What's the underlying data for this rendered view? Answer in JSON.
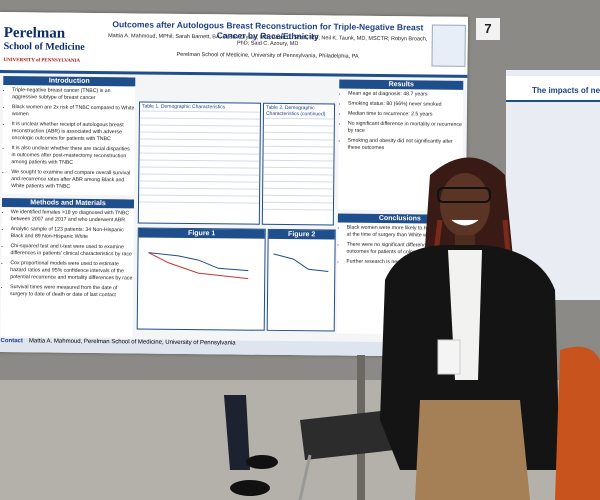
{
  "poster": {
    "logo": "Perelman",
    "logo_sub": "School of Medicine",
    "logo_univ": "UNIVERSITY of PENNSYLVANIA",
    "title": "Outcomes after Autologous Breast Reconstruction for Triple-Negative Breast Cancer by Race/Ethnicity",
    "authors": "Mattia A. Mahmoud, MPhil; Sarah Barnett, BA; Dustin Crystal, MD; Pavel D. Shah, MD; Neil K. Taunk, MD, MSCTR; Robyn Broach, PhD; Said C. Azoury, MD",
    "affiliation": "Perelman School of Medicine, University of Pennsylvania, Philadelphia, PA",
    "sections": [
      {
        "heading": "Introduction",
        "bullets": [
          "Triple-negative breast cancer (TNBC) is an aggressive subtype of breast cancer",
          "Black women are 2x risk of TNBC compared to White women",
          "It is unclear whether receipt of autologous breast reconstruction (ABR) is associated with adverse oncologic outcomes for patients with TNBC",
          "It is also unclear whether there are racial disparities in outcomes after post-mastectomy reconstruction among patients with TNBC",
          "We sought to examine and compare overall survival and recurrence rates after ABR among Black and White patients with TNBC"
        ]
      },
      {
        "heading": "Methods and Materials",
        "bullets": [
          "We identified females >18 yo diagnosed with TNBC between 2007 and 2017 and who underwent ABR",
          "Analytic sample of 123 patients: 34 Non-Hispanic Black and 89 Non-Hispanic White",
          "Chi-squared test and t-test were used to examine differences in patients' clinical characteristics by race",
          "Cox proportional models were used to estimate hazard ratios and 95% confidence intervals of the potential recurrence and mortality differences by race",
          "Survival times were measured from the date of surgery to date of death or date of last contact"
        ]
      },
      {
        "heading": "Results",
        "bullets": [
          "Mean age at diagnosis: 48.7 years",
          "Smoking status: 80 (66%) never smoked",
          "Median time to recurrence: 2.5 years",
          "No significant difference in mortality or recurrence by race",
          "Smoking and obesity did not significantly alter these outcomes"
        ]
      },
      {
        "heading": "Conclusions",
        "bullets": [
          "Black women were more likely to have higher BMI at the time of surgery than White women",
          "There were no significant differences in oncologic outcomes for patients of color",
          "Further research is needed"
        ]
      }
    ],
    "table1_title": "Table 1. Demographic Characteristics",
    "table2_title": "Table 2. Demographic Characteristics (continued)",
    "figure1": "Figure 1",
    "figure2": "Figure 2",
    "contact_heading": "Contact",
    "contact_text": "Mattia A. Mahmoud, Perelman School of Medicine, University of Pennsylvania"
  },
  "booth_number": "7",
  "neighbor_title": "The impacts of neoadjuv"
}
